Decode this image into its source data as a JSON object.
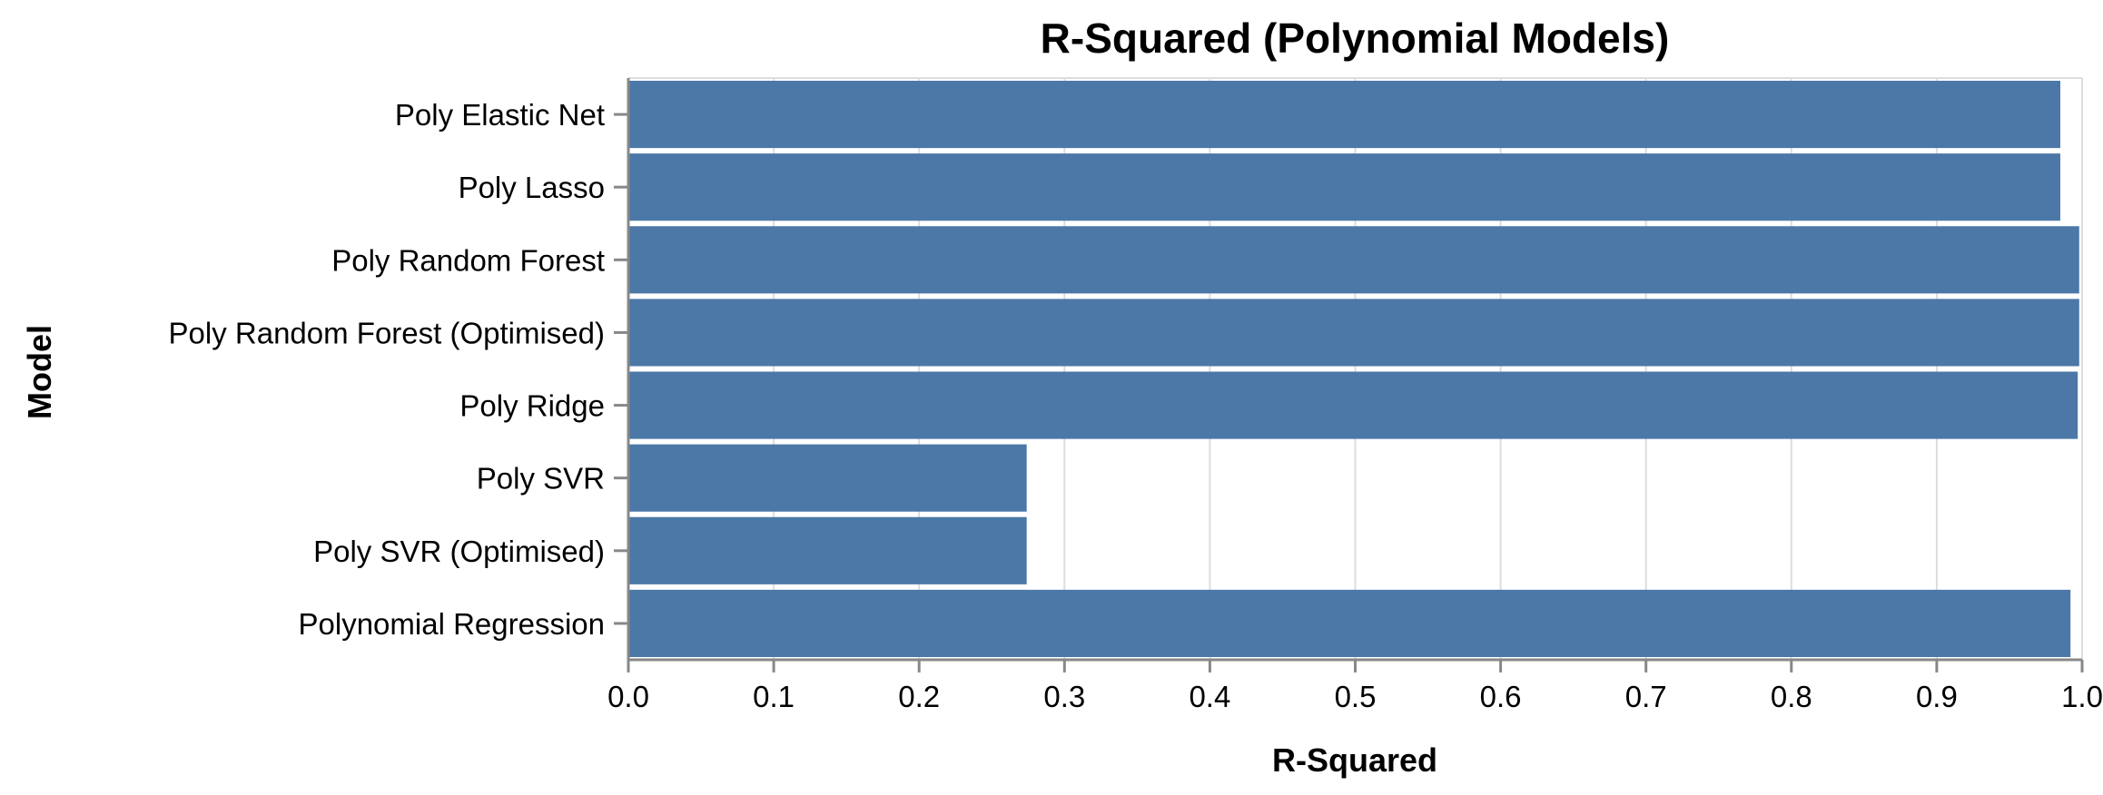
{
  "chart_data": {
    "type": "bar",
    "orientation": "horizontal",
    "title": "R-Squared (Polynomial Models)",
    "xlabel": "R-Squared",
    "ylabel": "Model",
    "xlim": [
      0,
      1.0
    ],
    "xticks": [
      "0.0",
      "0.1",
      "0.2",
      "0.3",
      "0.4",
      "0.5",
      "0.6",
      "0.7",
      "0.8",
      "0.9",
      "1.0"
    ],
    "categories": [
      "Poly Elastic Net",
      "Poly Lasso",
      "Poly Random Forest",
      "Poly Random Forest (Optimised)",
      "Poly Ridge",
      "Poly SVR",
      "Poly SVR (Optimised)",
      "Polynomial Regression"
    ],
    "values": [
      0.985,
      0.985,
      0.998,
      0.998,
      0.997,
      0.274,
      0.274,
      0.992
    ],
    "bar_color": "#4c78a8",
    "grid": true
  }
}
